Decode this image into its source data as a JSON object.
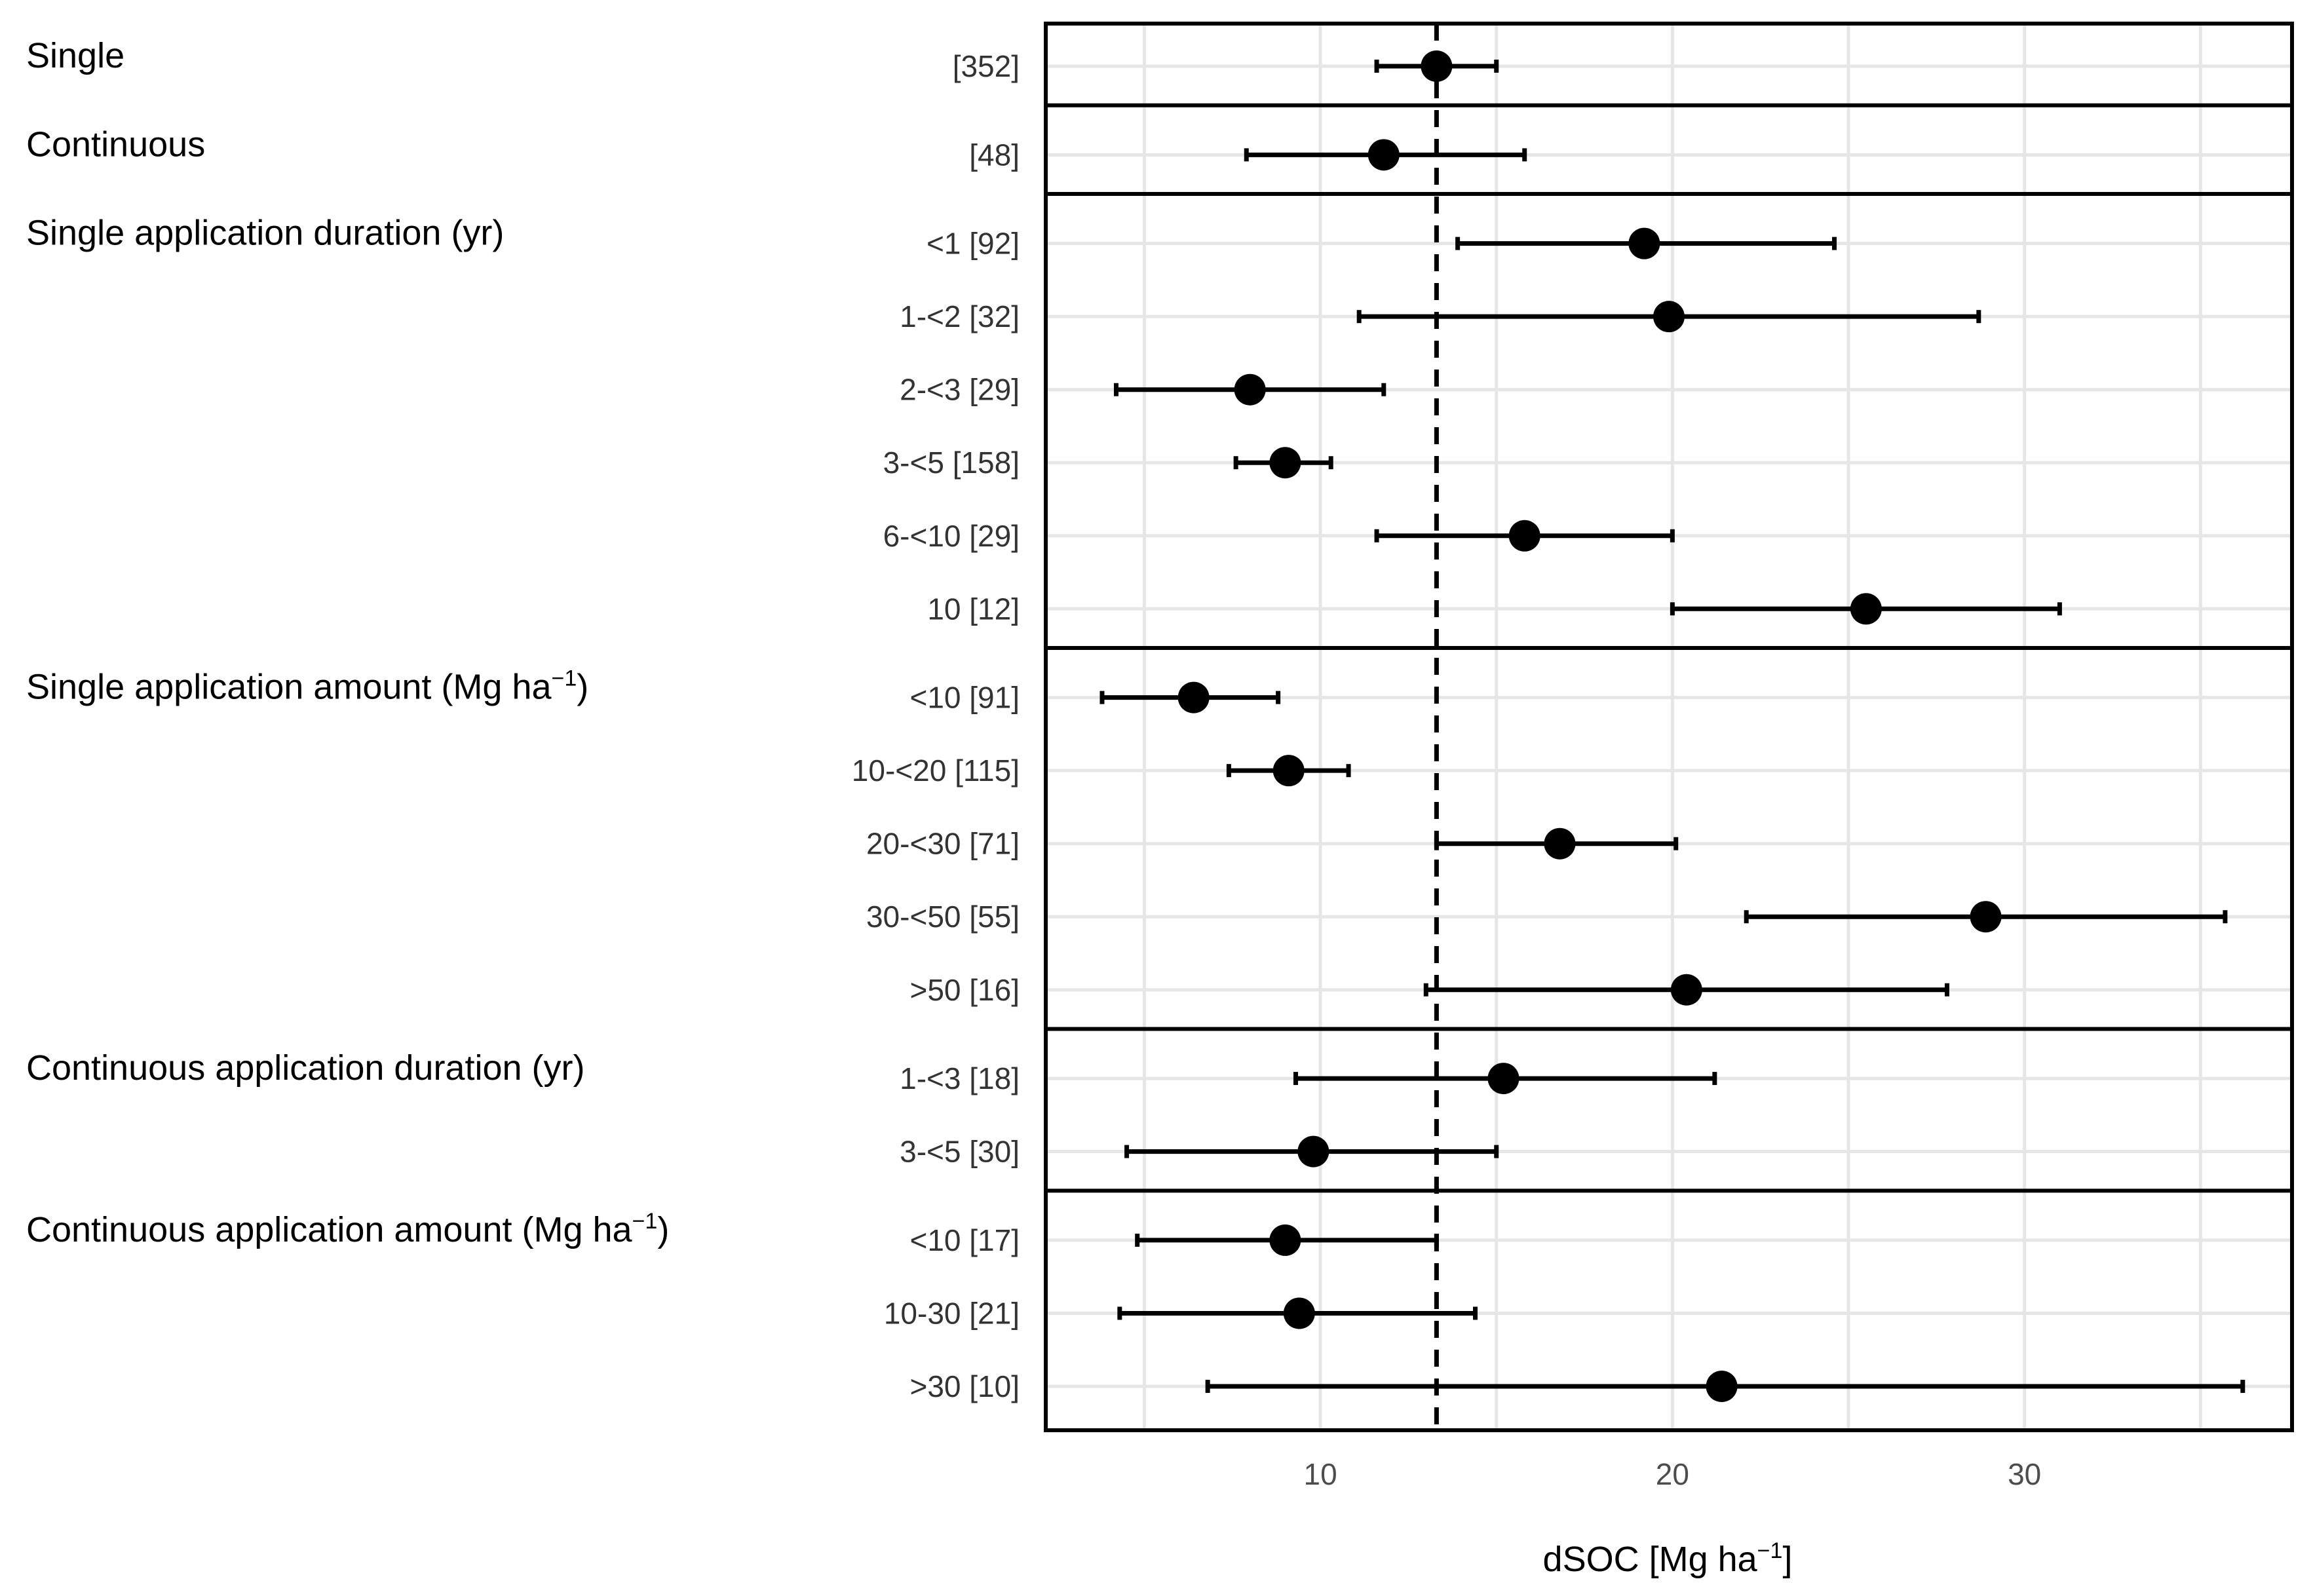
{
  "chart_data": {
    "type": "forest",
    "x_axis": {
      "title_prefix": "dSOC [Mg ha",
      "title_sup": "−1",
      "title_suffix": "]",
      "ticks": [
        10,
        20,
        30
      ],
      "tick_labels": [
        "10",
        "20",
        "30"
      ],
      "range": [
        2.2,
        37.6
      ]
    },
    "reference_line": 13.3,
    "groups": [
      {
        "label": "Single",
        "rows": [
          {
            "label": "[352]",
            "mean": 13.3,
            "low": 11.6,
            "high": 15.0
          }
        ]
      },
      {
        "label": "Continuous",
        "rows": [
          {
            "label": "[48]",
            "mean": 11.8,
            "low": 7.9,
            "high": 15.8
          }
        ]
      },
      {
        "label": "Single application duration (yr)",
        "rows": [
          {
            "label": "<1 [92]",
            "mean": 19.2,
            "low": 13.9,
            "high": 24.6
          },
          {
            "label": "1-<2 [32]",
            "mean": 19.9,
            "low": 11.1,
            "high": 28.7
          },
          {
            "label": "2-<3 [29]",
            "mean": 8.0,
            "low": 4.2,
            "high": 11.8
          },
          {
            "label": "3-<5 [158]",
            "mean": 9.0,
            "low": 7.6,
            "high": 10.3
          },
          {
            "label": "6-<10 [29]",
            "mean": 15.8,
            "low": 11.6,
            "high": 20.0
          },
          {
            "label": "10 [12]",
            "mean": 25.5,
            "low": 20.0,
            "high": 31.0
          }
        ]
      },
      {
        "label_prefix": "Single application amount (Mg ha",
        "label_sup": "−1",
        "label_suffix": ")",
        "rows": [
          {
            "label": "<10 [91]",
            "mean": 6.4,
            "low": 3.8,
            "high": 8.8
          },
          {
            "label": "10-<20 [115]",
            "mean": 9.1,
            "low": 7.4,
            "high": 10.8
          },
          {
            "label": "20-<30 [71]",
            "mean": 16.8,
            "low": 13.3,
            "high": 20.1
          },
          {
            "label": "30-<50 [55]",
            "mean": 28.9,
            "low": 22.1,
            "high": 35.7
          },
          {
            "label": ">50 [16]",
            "mean": 20.4,
            "low": 13.0,
            "high": 27.8
          }
        ]
      },
      {
        "label": "Continuous application duration (yr)",
        "rows": [
          {
            "label": "1-<3 [18]",
            "mean": 15.2,
            "low": 9.3,
            "high": 21.2
          },
          {
            "label": "3-<5 [30]",
            "mean": 9.8,
            "low": 4.5,
            "high": 15.0
          }
        ]
      },
      {
        "label_prefix": "Continuous application amount (Mg ha",
        "label_sup": "−1",
        "label_suffix": ")",
        "rows": [
          {
            "label": "<10 [17]",
            "mean": 9.0,
            "low": 4.8,
            "high": 13.3
          },
          {
            "label": "10-30 [21]",
            "mean": 9.4,
            "low": 4.3,
            "high": 14.4
          },
          {
            "label": ">30 [10]",
            "mean": 21.4,
            "low": 6.8,
            "high": 36.2
          }
        ]
      }
    ]
  }
}
